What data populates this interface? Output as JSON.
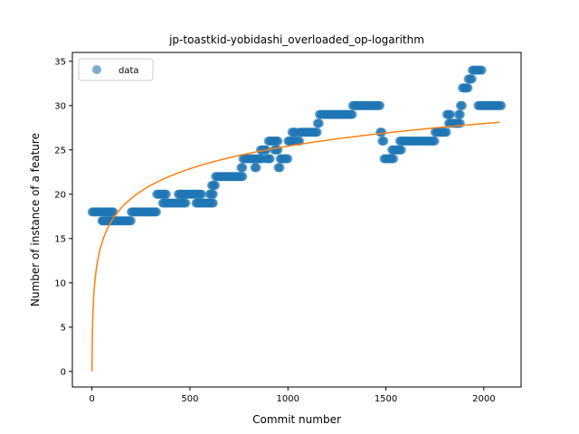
{
  "chart_data": {
    "type": "scatter",
    "title": "jp-toastkid-yobidashi_overloaded_op-logarithm",
    "xlabel": "Commit number",
    "ylabel": "Number of instance of a feature",
    "xlim": [
      -100,
      2190
    ],
    "ylim": [
      -1.75,
      36.0
    ],
    "xticks": [
      0,
      500,
      1000,
      1500,
      2000
    ],
    "yticks": [
      0,
      5,
      10,
      15,
      20,
      25,
      30,
      35
    ],
    "legend": {
      "position": "top-left",
      "entries": [
        "data"
      ]
    },
    "grid": false,
    "colors": {
      "data": "#1f77b4",
      "fit": "#ff7f0e"
    },
    "series": [
      {
        "name": "data",
        "style": "points",
        "segments": [
          [
            0,
            50,
            18
          ],
          [
            50,
            55,
            17
          ],
          [
            60,
            110,
            18
          ],
          [
            55,
            90,
            17
          ],
          [
            90,
            200,
            17
          ],
          [
            200,
            330,
            18
          ],
          [
            330,
            380,
            20
          ],
          [
            360,
            480,
            19
          ],
          [
            440,
            560,
            20
          ],
          [
            530,
            620,
            19
          ],
          [
            600,
            620,
            20
          ],
          [
            610,
            630,
            21
          ],
          [
            630,
            770,
            22
          ],
          [
            760,
            770,
            23
          ],
          [
            770,
            830,
            24
          ],
          [
            830,
            840,
            23
          ],
          [
            840,
            870,
            24
          ],
          [
            860,
            890,
            25
          ],
          [
            890,
            910,
            24
          ],
          [
            900,
            950,
            26
          ],
          [
            930,
            950,
            25
          ],
          [
            950,
            960,
            23
          ],
          [
            960,
            1000,
            24
          ],
          [
            1000,
            1030,
            26
          ],
          [
            1020,
            1040,
            27
          ],
          [
            1040,
            1060,
            26
          ],
          [
            1060,
            1150,
            27
          ],
          [
            1150,
            1160,
            28
          ],
          [
            1160,
            1330,
            29
          ],
          [
            1330,
            1470,
            30
          ],
          [
            1470,
            1480,
            27
          ],
          [
            1480,
            1490,
            26
          ],
          [
            1490,
            1540,
            24
          ],
          [
            1530,
            1580,
            25
          ],
          [
            1570,
            1750,
            26
          ],
          [
            1750,
            1810,
            27
          ],
          [
            1810,
            1830,
            29
          ],
          [
            1820,
            1860,
            28
          ],
          [
            1860,
            1880,
            28
          ],
          [
            1870,
            1880,
            29
          ],
          [
            1880,
            1890,
            30
          ],
          [
            1890,
            1920,
            32
          ],
          [
            1920,
            1940,
            33
          ],
          [
            1940,
            1990,
            34
          ],
          [
            1970,
            2090,
            30
          ]
        ]
      },
      {
        "name": "",
        "style": "line",
        "fit": {
          "model": "a*ln(x+1)",
          "a": 3.68,
          "x_range": [
            0,
            2080
          ]
        }
      }
    ]
  }
}
